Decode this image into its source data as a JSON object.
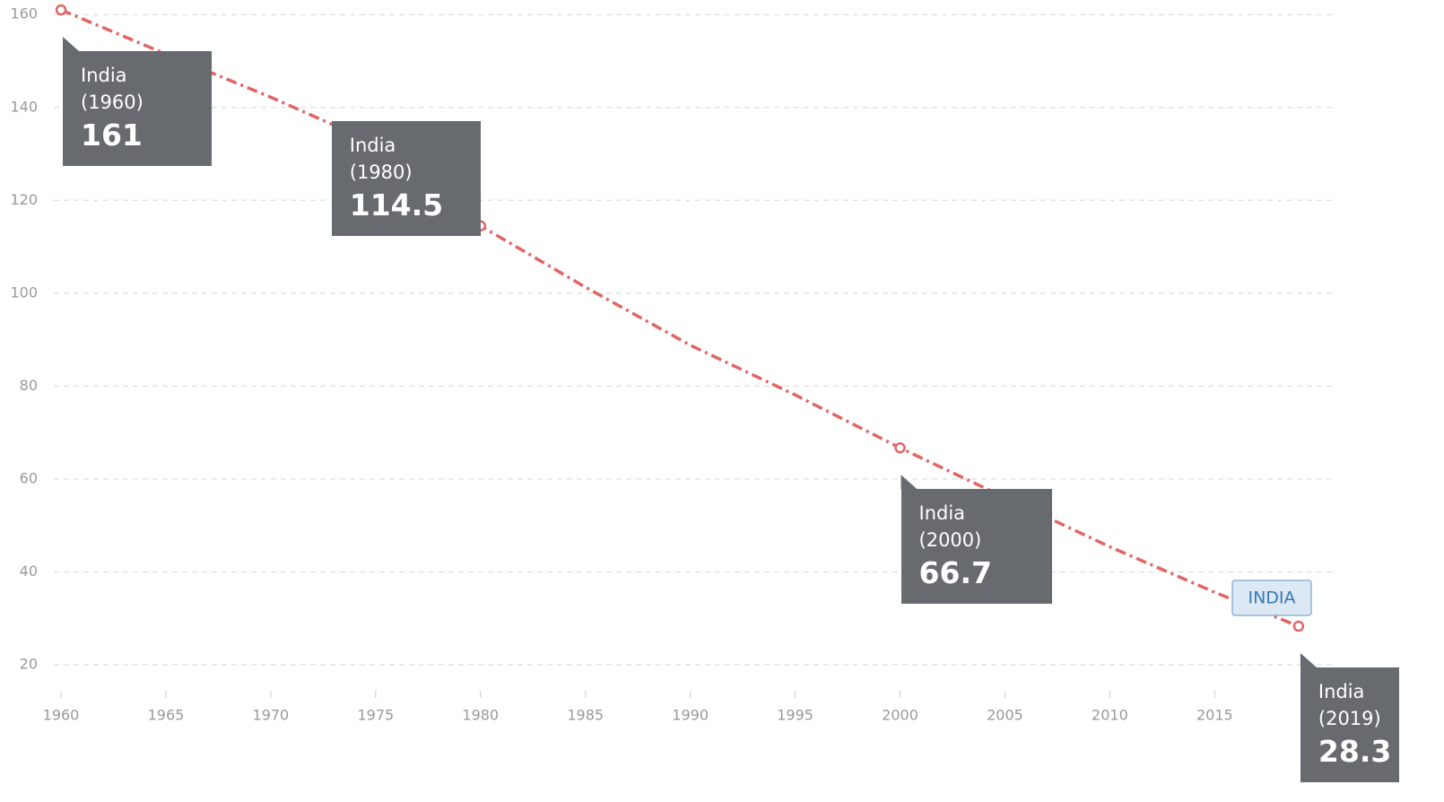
{
  "chart_data": {
    "type": "line",
    "x": [
      1960,
      1965,
      1970,
      1975,
      1980,
      1985,
      1990,
      1995,
      2000,
      2005,
      2010,
      2015,
      2019
    ],
    "series": [
      {
        "name": "INDIA",
        "color": "#e06666",
        "values": [
          161,
          151.5,
          142.2,
          132.2,
          114.5,
          101.3,
          88.8,
          78.1,
          66.7,
          56,
          45.4,
          35.6,
          28.3
        ],
        "point_labels": [
          "India (1960)",
          null,
          null,
          null,
          "India (1980)",
          null,
          null,
          null,
          "India (2000)",
          null,
          null,
          null,
          "India (2019)"
        ]
      }
    ],
    "xlim": [
      1960,
      2020.8
    ],
    "ylim": [
      14.4,
      161.2
    ],
    "xticks": [
      1960,
      1965,
      1970,
      1975,
      1980,
      1985,
      1990,
      1995,
      2000,
      2005,
      2010,
      2015
    ],
    "yticks": [
      20,
      40,
      60,
      80,
      100,
      120,
      140,
      160
    ],
    "grid": true
  }
}
